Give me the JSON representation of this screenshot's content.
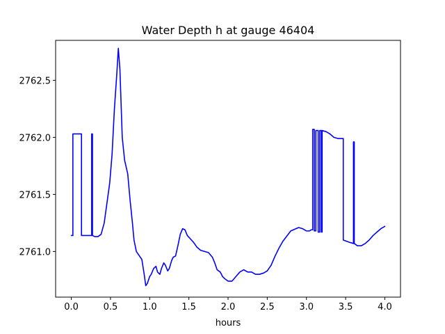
{
  "chart_data": {
    "type": "line",
    "title": "Water Depth h at gauge 46404",
    "xlabel": "hours",
    "ylabel": "",
    "xlim": [
      -0.2,
      4.2
    ],
    "ylim": [
      2760.6,
      2762.85
    ],
    "x_ticks": [
      0.0,
      0.5,
      1.0,
      1.5,
      2.0,
      2.5,
      3.0,
      3.5,
      4.0
    ],
    "x_tick_labels": [
      "0.0",
      "0.5",
      "1.0",
      "1.5",
      "2.0",
      "2.5",
      "3.0",
      "3.5",
      "4.0"
    ],
    "y_ticks": [
      2761.0,
      2761.5,
      2762.0,
      2762.5
    ],
    "y_tick_labels": [
      "2761.0",
      "2761.5",
      "2762.0",
      "2762.5"
    ],
    "grid": false,
    "legend": "none",
    "series": [
      {
        "color": "#0000ff",
        "x": [
          0.0,
          0.02,
          0.02,
          0.13,
          0.13,
          0.26,
          0.26,
          0.27,
          0.27,
          0.3,
          0.34,
          0.38,
          0.42,
          0.46,
          0.49,
          0.52,
          0.55,
          0.58,
          0.6,
          0.62,
          0.65,
          0.68,
          0.72,
          0.75,
          0.78,
          0.8,
          0.83,
          0.87,
          0.9,
          0.93,
          0.95,
          0.97,
          1.0,
          1.02,
          1.05,
          1.08,
          1.1,
          1.13,
          1.15,
          1.18,
          1.2,
          1.23,
          1.25,
          1.28,
          1.3,
          1.33,
          1.36,
          1.39,
          1.42,
          1.45,
          1.48,
          1.52,
          1.56,
          1.6,
          1.65,
          1.7,
          1.75,
          1.8,
          1.83,
          1.86,
          1.9,
          1.93,
          1.96,
          2.0,
          2.05,
          2.1,
          2.15,
          2.2,
          2.25,
          2.3,
          2.35,
          2.4,
          2.45,
          2.5,
          2.55,
          2.6,
          2.65,
          2.7,
          2.8,
          2.9,
          2.95,
          3.0,
          3.02,
          3.04,
          3.06,
          3.08,
          3.08,
          3.1,
          3.1,
          3.12,
          3.12,
          3.15,
          3.15,
          3.17,
          3.17,
          3.19,
          3.19,
          3.2,
          3.2,
          3.25,
          3.3,
          3.35,
          3.4,
          3.47,
          3.47,
          3.55,
          3.6,
          3.6,
          3.61,
          3.61,
          3.63,
          3.65,
          3.7,
          3.75,
          3.8,
          3.85,
          3.9,
          3.95,
          4.0
        ],
        "y": [
          2761.14,
          2761.14,
          2762.03,
          2762.03,
          2761.14,
          2761.14,
          2762.03,
          2762.03,
          2761.14,
          2761.13,
          2761.13,
          2761.15,
          2761.25,
          2761.45,
          2761.6,
          2761.85,
          2762.25,
          2762.55,
          2762.78,
          2762.6,
          2762.0,
          2761.8,
          2761.68,
          2761.45,
          2761.25,
          2761.1,
          2761.0,
          2760.96,
          2760.93,
          2760.8,
          2760.7,
          2760.72,
          2760.78,
          2760.8,
          2760.85,
          2760.87,
          2760.82,
          2760.8,
          2760.85,
          2760.9,
          2760.88,
          2760.83,
          2760.85,
          2760.92,
          2760.95,
          2760.96,
          2761.05,
          2761.15,
          2761.2,
          2761.19,
          2761.14,
          2761.11,
          2761.08,
          2761.04,
          2761.01,
          2761.0,
          2760.99,
          2760.95,
          2760.9,
          2760.84,
          2760.82,
          2760.78,
          2760.76,
          2760.74,
          2760.74,
          2760.78,
          2760.82,
          2760.84,
          2760.82,
          2760.82,
          2760.8,
          2760.8,
          2760.81,
          2760.83,
          2760.88,
          2760.96,
          2761.03,
          2761.09,
          2761.18,
          2761.21,
          2761.2,
          2761.18,
          2761.18,
          2761.18,
          2761.19,
          2761.19,
          2762.07,
          2762.07,
          2761.18,
          2761.18,
          2762.06,
          2762.06,
          2761.17,
          2761.17,
          2762.06,
          2762.06,
          2761.17,
          2761.17,
          2762.06,
          2762.05,
          2762.03,
          2762.0,
          2761.99,
          2761.99,
          2761.1,
          2761.08,
          2761.07,
          2761.96,
          2761.96,
          2761.07,
          2761.06,
          2761.05,
          2761.05,
          2761.07,
          2761.1,
          2761.14,
          2761.17,
          2761.2,
          2761.22
        ]
      }
    ]
  }
}
